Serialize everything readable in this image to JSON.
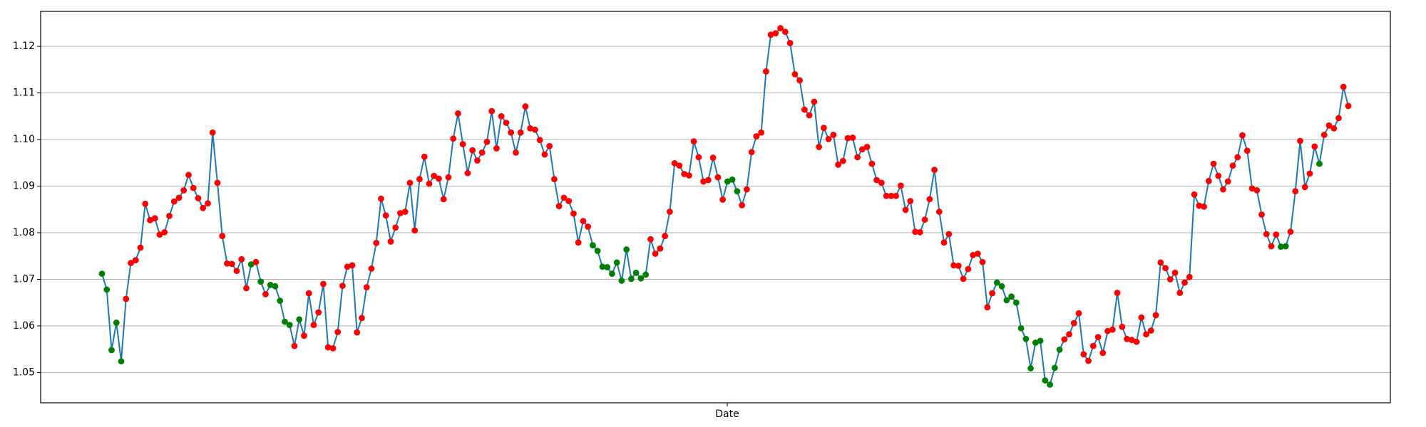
{
  "chart_data": {
    "type": "line",
    "title": "",
    "xlabel": "Date",
    "ylabel": "",
    "ylim": [
      1.0435,
      1.1275
    ],
    "yticks": [
      1.05,
      1.06,
      1.07,
      1.08,
      1.09,
      1.1,
      1.11,
      1.12
    ],
    "ytick_labels": [
      "1.05",
      "1.06",
      "1.07",
      "1.08",
      "1.09",
      "1.10",
      "1.11",
      "1.12"
    ],
    "grid": "y",
    "legend": "none",
    "colors": {
      "line": "#1f77b4",
      "marker_red": "#ff0000",
      "marker_green": "#008000",
      "grid": "#b0b0b0",
      "frame": "#000000"
    },
    "marker_classes": "r = red marker, g = green marker",
    "series": [
      {
        "values": [
          1.0712,
          1.0678,
          1.0548,
          1.0607,
          1.0524,
          1.0658,
          1.0735,
          1.0741,
          1.0768,
          1.0862,
          1.0827,
          1.0831,
          1.0796,
          1.0801,
          1.0836,
          1.0867,
          1.0875,
          1.0891,
          1.0924,
          1.0896,
          1.0874,
          1.0853,
          1.0863,
          1.1015,
          1.0907,
          1.0793,
          1.0734,
          1.0733,
          1.0718,
          1.0743,
          1.0681,
          1.0732,
          1.0737,
          1.0695,
          1.0668,
          1.0688,
          1.0685,
          1.0654,
          1.0609,
          1.0602,
          1.0557,
          1.0614,
          1.0579,
          1.067,
          1.0602,
          1.0629,
          1.069,
          1.0554,
          1.0552,
          1.0587,
          1.0686,
          1.0727,
          1.073,
          1.0586,
          1.0617,
          1.0683,
          1.0723,
          1.0778,
          1.0873,
          1.0837,
          1.0781,
          1.0811,
          1.0842,
          1.0845,
          1.0907,
          1.0805,
          1.0915,
          1.0963,
          1.0905,
          1.0922,
          1.0916,
          1.0872,
          1.0919,
          1.1002,
          1.1056,
          1.099,
          1.0928,
          1.0977,
          1.0955,
          1.0972,
          1.0995,
          1.1061,
          1.0981,
          1.105,
          1.1036,
          1.1015,
          1.0972,
          1.1015,
          1.1071,
          1.1024,
          1.1021,
          1.0999,
          1.0968,
          1.0986,
          1.0915,
          1.0857,
          1.0875,
          1.0868,
          1.0841,
          1.0779,
          1.0825,
          1.0813,
          1.0773,
          1.0761,
          1.0727,
          1.0726,
          1.0712,
          1.0736,
          1.0697,
          1.0764,
          1.0701,
          1.0714,
          1.0702,
          1.071,
          1.0786,
          1.0755,
          1.0766,
          1.0793,
          1.0845,
          1.0949,
          1.0944,
          1.0926,
          1.0923,
          1.0996,
          1.0962,
          1.091,
          1.0913,
          1.0961,
          1.0919,
          1.0871,
          1.091,
          1.0914,
          1.0889,
          1.0859,
          1.0893,
          1.0973,
          1.1007,
          1.1015,
          1.1146,
          1.1225,
          1.1228,
          1.1239,
          1.1231,
          1.1207,
          1.114,
          1.1127,
          1.1064,
          1.1052,
          1.1081,
          1.0984,
          1.1025,
          1.1001,
          1.101,
          1.0946,
          1.0954,
          1.1003,
          1.1004,
          1.0962,
          1.0979,
          1.0984,
          1.0948,
          1.0913,
          1.0907,
          1.0879,
          1.0879,
          1.0879,
          1.0901,
          1.0849,
          1.0868,
          1.0802,
          1.0801,
          1.0828,
          1.0872,
          1.0935,
          1.0845,
          1.0779,
          1.0797,
          1.073,
          1.0729,
          1.0701,
          1.0722,
          1.0752,
          1.0755,
          1.0737,
          1.064,
          1.067,
          1.0693,
          1.0685,
          1.0655,
          1.0663,
          1.065,
          1.0595,
          1.0572,
          1.0509,
          1.0564,
          1.0568,
          1.0483,
          1.0474,
          1.051,
          1.0549,
          1.0571,
          1.0582,
          1.0606,
          1.0627,
          1.0539,
          1.0525,
          1.0557,
          1.0576,
          1.0542,
          1.0589,
          1.0592,
          1.0671,
          1.0598,
          1.0572,
          1.057,
          1.0566,
          1.0618,
          1.0582,
          1.059,
          1.0623,
          1.0736,
          1.0724,
          1.07,
          1.0714,
          1.0671,
          1.0693,
          1.0705,
          1.0882,
          1.0858,
          1.0856,
          1.0911,
          1.0948,
          1.0922,
          1.0893,
          1.091,
          1.0944,
          1.0962,
          1.1009,
          1.0976,
          1.0895,
          1.0891,
          1.0839,
          1.0797,
          1.0771,
          1.0796,
          1.077,
          1.0771,
          1.0802,
          1.0889,
          1.0997,
          1.0898,
          1.0927,
          1.0985,
          1.0948,
          1.101,
          1.103,
          1.1024,
          1.1046,
          1.1113,
          1.1072
        ],
        "marker_colors": "gggggrrrrrrrrrrrrrrrrrrrrrrrrrrgrgrgggggrgrrrrrrrrrrrrrrrrrrrrrrrrrrrrrrrrrrrrrrrrrrrrrrrrrrrrrrrrrrrrggggggggggggrrrrrrrrrrrrrrrrgggrrrrrrrrrrrrrrrrrrrrrrrrrrrrrrrrrrrrrrrrrrrrrrrrrrrrrggggggggggggggrrrrrrrrrrrrrrrrrrrrrrrrrrrrrrrrrrrrrrrrrrrrrggrrrrrrgrrrrr"
      }
    ]
  }
}
